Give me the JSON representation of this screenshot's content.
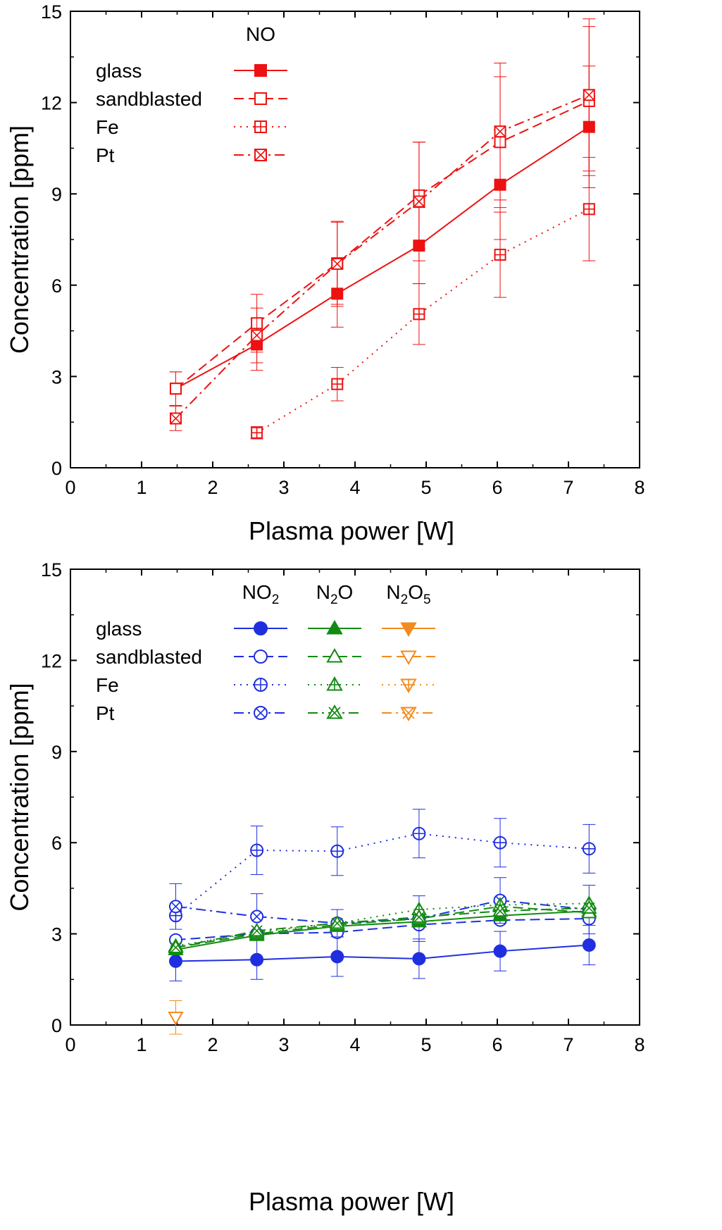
{
  "chart_data": [
    {
      "type": "line",
      "xlabel": "Plasma power [W]",
      "ylabel": "Concentration [ppm]",
      "xlim": [
        0,
        8
      ],
      "ylim": [
        0,
        15
      ],
      "x_ticks": [
        "0",
        "1",
        "2",
        "3",
        "4",
        "5",
        "6",
        "7",
        "8"
      ],
      "y_ticks": [
        "0",
        "3",
        "6",
        "9",
        "12",
        "15"
      ],
      "legend_position": "top-left",
      "legend_groups": [
        {
          "header": "NO",
          "header_sub": [],
          "color": "#ee1111"
        }
      ],
      "legend_rows": [
        "glass",
        "sandblasted",
        "Fe",
        "Pt"
      ],
      "grid": false,
      "series": [
        {
          "name": "glass",
          "group": "NO",
          "color": "#ee1111",
          "marker": "square-filled",
          "dash": "solid",
          "x": [
            1.48,
            2.62,
            3.75,
            4.9,
            6.04,
            7.29
          ],
          "y": [
            2.6,
            4.05,
            5.72,
            7.3,
            9.3,
            11.2
          ],
          "err": [
            0.55,
            0.85,
            1.1,
            1.25,
            1.8,
            2.0
          ]
        },
        {
          "name": "sandblasted",
          "group": "NO",
          "color": "#ee1111",
          "marker": "square-open",
          "dash": "dashed",
          "x": [
            1.48,
            2.62,
            3.75,
            4.9,
            6.04,
            7.29
          ],
          "y": [
            2.6,
            4.75,
            6.72,
            8.95,
            10.7,
            12.05
          ],
          "err": [
            0.55,
            0.95,
            1.35,
            1.75,
            2.15,
            2.45
          ]
        },
        {
          "name": "Fe",
          "group": "NO",
          "color": "#ee1111",
          "marker": "square-plus",
          "dash": "dotted",
          "x": [
            2.62,
            3.75,
            4.9,
            6.04,
            7.29
          ],
          "y": [
            1.15,
            2.75,
            5.05,
            7.0,
            8.5
          ],
          "err": [
            0.2,
            0.55,
            1.0,
            1.4,
            1.7
          ]
        },
        {
          "name": "Pt",
          "group": "NO",
          "color": "#ee1111",
          "marker": "square-x",
          "dash": "dashdot",
          "x": [
            1.48,
            2.62,
            3.75,
            4.9,
            6.04,
            7.29
          ],
          "y": [
            1.62,
            4.35,
            6.7,
            8.75,
            11.05,
            12.25
          ],
          "err": [
            0.4,
            0.9,
            1.4,
            1.95,
            2.25,
            2.5
          ]
        }
      ]
    },
    {
      "type": "line",
      "xlabel": "Plasma power [W]",
      "ylabel": "Concentration [ppm]",
      "xlim": [
        0,
        8
      ],
      "ylim": [
        0,
        15
      ],
      "x_ticks": [
        "0",
        "1",
        "2",
        "3",
        "4",
        "5",
        "6",
        "7",
        "8"
      ],
      "y_ticks": [
        "0",
        "3",
        "6",
        "9",
        "12",
        "15"
      ],
      "legend_position": "top-left",
      "legend_groups": [
        {
          "header": "NO",
          "header_sub": [
            "2",
            ""
          ],
          "color": "#1f2fe0"
        },
        {
          "header": "N",
          "header_sub": [
            "2",
            "O"
          ],
          "color": "#138a13"
        },
        {
          "header": "N",
          "header_sub": [
            "2",
            "O",
            "5"
          ],
          "color": "#f28a1e"
        }
      ],
      "legend_rows": [
        "glass",
        "sandblasted",
        "Fe",
        "Pt"
      ],
      "grid": false,
      "series": [
        {
          "name": "glass",
          "group": "NO2",
          "color": "#1f2fe0",
          "marker": "circle-filled",
          "dash": "solid",
          "x": [
            1.48,
            2.62,
            3.75,
            4.9,
            6.04,
            7.29
          ],
          "y": [
            2.1,
            2.15,
            2.25,
            2.18,
            2.43,
            2.63
          ],
          "err": [
            0.65,
            0.65,
            0.65,
            0.65,
            0.65,
            0.65
          ]
        },
        {
          "name": "sandblasted",
          "group": "NO2",
          "color": "#1f2fe0",
          "marker": "circle-open",
          "dash": "dashed",
          "x": [
            1.48,
            2.62,
            3.75,
            4.9,
            6.04,
            7.29
          ],
          "y": [
            2.8,
            3.0,
            3.05,
            3.3,
            3.45,
            3.5
          ],
          "err": [
            0.0,
            0.0,
            0.0,
            0.0,
            0.0,
            0.0
          ]
        },
        {
          "name": "Fe",
          "group": "NO2",
          "color": "#1f2fe0",
          "marker": "circle-plus",
          "dash": "dotted",
          "x": [
            1.48,
            2.62,
            3.75,
            4.9,
            6.04,
            7.29
          ],
          "y": [
            3.6,
            5.75,
            5.72,
            6.3,
            6.0,
            5.8
          ],
          "err": [
            0.0,
            0.8,
            0.8,
            0.8,
            0.8,
            0.8
          ]
        },
        {
          "name": "Pt",
          "group": "NO2",
          "color": "#1f2fe0",
          "marker": "circle-x",
          "dash": "dashdot",
          "x": [
            1.48,
            2.62,
            3.75,
            4.9,
            6.04,
            7.29
          ],
          "y": [
            3.9,
            3.57,
            3.35,
            3.5,
            4.1,
            3.8
          ],
          "err": [
            0.75,
            0.75,
            0.45,
            0.75,
            0.75,
            0.8
          ]
        },
        {
          "name": "glass",
          "group": "N2O",
          "color": "#138a13",
          "marker": "triangle-filled",
          "dash": "solid",
          "x": [
            1.48,
            2.62,
            3.75,
            4.9,
            6.04,
            7.29
          ],
          "y": [
            2.48,
            2.95,
            3.25,
            3.4,
            3.6,
            3.75
          ],
          "err": [
            0.0,
            0.0,
            0.0,
            0.0,
            0.0,
            0.0
          ]
        },
        {
          "name": "sandblasted",
          "group": "N2O",
          "color": "#138a13",
          "marker": "triangle-open",
          "dash": "dashed",
          "x": [
            1.48,
            2.62,
            3.75,
            4.9,
            6.04,
            7.29
          ],
          "y": [
            2.55,
            3.0,
            3.3,
            3.5,
            3.9,
            3.7
          ],
          "err": [
            0.0,
            0.0,
            0.0,
            0.0,
            0.0,
            0.0
          ]
        },
        {
          "name": "Fe",
          "group": "N2O",
          "color": "#138a13",
          "marker": "triangle-plus",
          "dash": "dotted",
          "x": [
            1.48,
            2.62,
            3.75,
            4.9,
            6.04,
            7.29
          ],
          "y": [
            2.6,
            3.05,
            3.35,
            3.8,
            3.95,
            4.0
          ],
          "err": [
            0.0,
            0.0,
            0.0,
            0.0,
            0.0,
            0.0
          ]
        },
        {
          "name": "Pt",
          "group": "N2O",
          "color": "#138a13",
          "marker": "triangle-x",
          "dash": "dashdot",
          "x": [
            1.48,
            2.62,
            3.75,
            4.9,
            6.04,
            7.29
          ],
          "y": [
            2.55,
            3.1,
            3.35,
            3.55,
            3.75,
            3.85
          ],
          "err": [
            0.0,
            0.0,
            0.0,
            0.0,
            0.0,
            0.0
          ]
        },
        {
          "name": "sandblasted",
          "group": "N2O5",
          "color": "#f28a1e",
          "marker": "triangledown-open",
          "dash": "dashed",
          "x": [
            1.48
          ],
          "y": [
            0.25
          ],
          "err": [
            0.55
          ]
        }
      ]
    }
  ]
}
